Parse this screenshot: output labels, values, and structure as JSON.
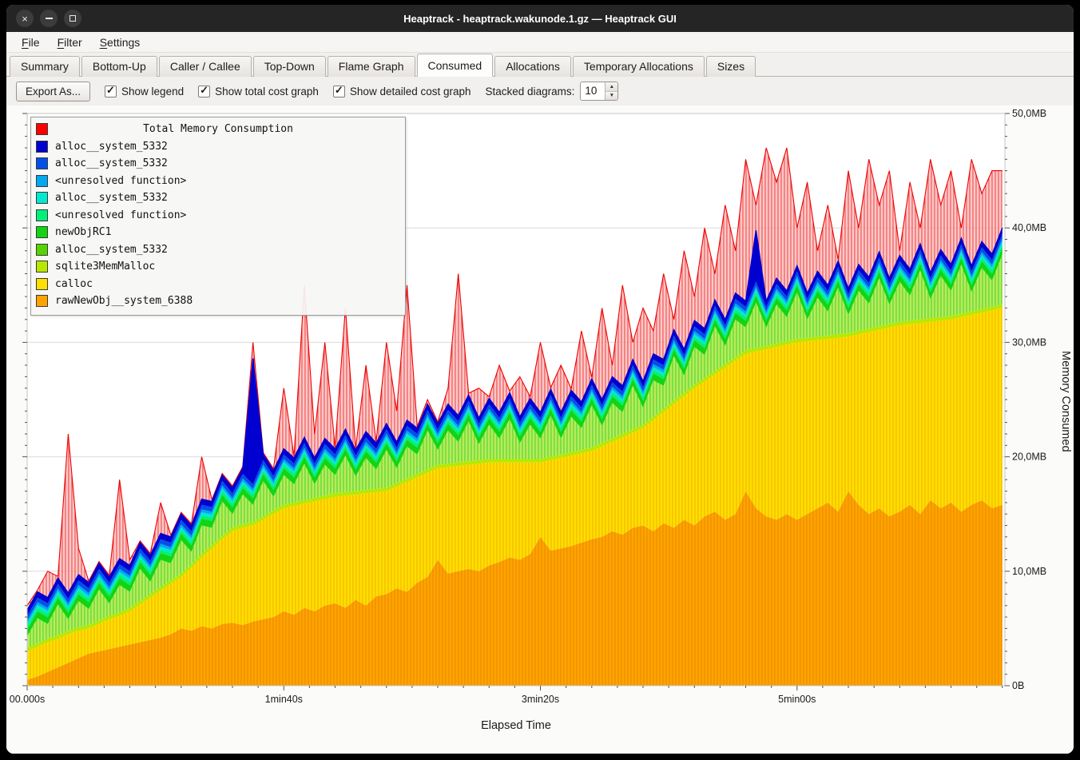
{
  "window": {
    "title": "Heaptrack - heaptrack.wakunode.1.gz — Heaptrack GUI"
  },
  "menu": {
    "items": [
      {
        "label": "File",
        "mnemonic": 0
      },
      {
        "label": "Filter",
        "mnemonic": 0
      },
      {
        "label": "Settings",
        "mnemonic": 0
      }
    ]
  },
  "tabs": {
    "active": 5,
    "items": [
      {
        "label": "Summary"
      },
      {
        "label": "Bottom-Up"
      },
      {
        "label": "Caller / Callee"
      },
      {
        "label": "Top-Down"
      },
      {
        "label": "Flame Graph"
      },
      {
        "label": "Consumed"
      },
      {
        "label": "Allocations"
      },
      {
        "label": "Temporary Allocations"
      },
      {
        "label": "Sizes"
      }
    ]
  },
  "toolbar": {
    "export_label": "Export As...",
    "checkboxes": [
      {
        "label": "Show legend",
        "checked": true
      },
      {
        "label": "Show total cost graph",
        "checked": true
      },
      {
        "label": "Show detailed cost graph",
        "checked": true
      }
    ],
    "stacked_label": "Stacked diagrams:",
    "stacked_value": "10"
  },
  "chart_data": {
    "type": "area",
    "title": "Total Memory Consumption",
    "xlabel": "Elapsed Time",
    "ylabel": "Memory Consumed",
    "xlim": [
      0,
      381
    ],
    "ylim": [
      0,
      50
    ],
    "x_step": 4,
    "x_count": 96,
    "x_minor": 10,
    "y_minor": 1,
    "x_ticks": [
      {
        "t": 0,
        "label": "00.000s"
      },
      {
        "t": 100,
        "label": "1min40s"
      },
      {
        "t": 200,
        "label": "3min20s"
      },
      {
        "t": 300,
        "label": "5min00s"
      }
    ],
    "y_ticks": [
      {
        "v": 0,
        "label": "0B"
      },
      {
        "v": 10,
        "label": "10,0MB"
      },
      {
        "v": 20,
        "label": "20,0MB"
      },
      {
        "v": 30,
        "label": "30,0MB"
      },
      {
        "v": 40,
        "label": "40,0MB"
      },
      {
        "v": 50,
        "label": "50,0MB"
      }
    ],
    "legend": [
      {
        "label": "Total Memory Consumption",
        "color": "#ff0000"
      },
      {
        "label": "alloc__system_5332",
        "color": "#0000d0"
      },
      {
        "label": "alloc__system_5332",
        "color": "#0050e8"
      },
      {
        "label": "<unresolved function>",
        "color": "#00a8f0"
      },
      {
        "label": "alloc__system_5332",
        "color": "#00e8d0"
      },
      {
        "label": "<unresolved function>",
        "color": "#00f07a"
      },
      {
        "label": "newObjRC1",
        "color": "#12d412"
      },
      {
        "label": "alloc__system_5332",
        "color": "#55d400"
      },
      {
        "label": "sqlite3MemMalloc",
        "color": "#b8e800"
      },
      {
        "label": "calloc",
        "color": "#ffdf00"
      },
      {
        "label": "rawNewObj__system_6388",
        "color": "#ffa300"
      }
    ],
    "patterns": {
      "po": {
        "base": "#ffa300",
        "line": "#e78c00"
      },
      "py": {
        "base": "#ffdf00",
        "line": "#f0b400"
      },
      "pg": {
        "base": "#b9ec57",
        "line": "#4cd338"
      },
      "pr": {
        "base": "#ffb4b4",
        "line": "#e01414"
      }
    },
    "grid_color": "#dcdcdc",
    "series": [
      {
        "name": "rawNewObj__system_6388",
        "color": "#ffa300",
        "pattern": "po",
        "values": [
          0.5,
          0.8,
          1.2,
          1.6,
          2.0,
          2.4,
          2.8,
          3.0,
          3.2,
          3.4,
          3.6,
          3.8,
          4.0,
          4.2,
          4.5,
          5.0,
          4.8,
          5.2,
          5.0,
          5.4,
          5.5,
          5.3,
          5.6,
          5.8,
          6.0,
          6.5,
          6.2,
          6.8,
          6.5,
          7.0,
          7.2,
          6.8,
          7.5,
          7.0,
          7.8,
          8.0,
          8.5,
          8.2,
          9.0,
          9.5,
          11.0,
          9.8,
          10.0,
          10.2,
          10.0,
          10.5,
          10.8,
          11.2,
          11.0,
          11.5,
          13.0,
          11.8,
          12.0,
          12.2,
          12.5,
          12.8,
          13.0,
          13.5,
          13.2,
          13.8,
          14.0,
          13.5,
          14.2,
          13.8,
          14.5,
          14.0,
          14.8,
          15.2,
          14.5,
          15.0,
          17.0,
          15.5,
          14.8,
          14.5,
          15.0,
          14.5,
          15.0,
          15.5,
          16.0,
          15.2,
          17.0,
          15.8,
          15.0,
          15.5,
          14.8,
          15.2,
          15.8,
          15.0,
          16.2,
          15.5,
          16.0,
          15.2,
          15.8,
          16.2,
          15.5,
          15.8
        ]
      },
      {
        "name": "calloc",
        "color": "#ffdf00",
        "pattern": "py",
        "values": [
          2.5,
          2.6,
          2.6,
          2.5,
          2.5,
          2.4,
          2.2,
          2.4,
          2.6,
          2.7,
          2.9,
          3.3,
          3.7,
          4.1,
          4.4,
          4.5,
          5.5,
          6.0,
          7.0,
          7.4,
          8.0,
          8.5,
          8.4,
          8.7,
          9.0,
          9.0,
          9.5,
          9.1,
          9.6,
          9.3,
          9.3,
          9.8,
          9.2,
          9.8,
          9.1,
          9.0,
          8.9,
          9.6,
          9.2,
          9.1,
          8.0,
          9.3,
          9.2,
          9.1,
          9.4,
          9.0,
          8.7,
          8.3,
          8.5,
          8.0,
          6.5,
          7.9,
          7.9,
          7.9,
          7.8,
          7.7,
          7.9,
          7.8,
          8.5,
          8.3,
          8.5,
          9.7,
          9.7,
          10.8,
          10.8,
          12.0,
          11.8,
          12.0,
          13.3,
          13.4,
          12.0,
          13.7,
          14.6,
          15.1,
          14.8,
          15.5,
          15.1,
          14.7,
          14.3,
          15.2,
          13.5,
          14.9,
          15.9,
          15.6,
          16.5,
          16.3,
          15.8,
          16.7,
          15.6,
          16.4,
          16.0,
          17.0,
          16.6,
          16.4,
          17.3,
          17.2
        ]
      },
      {
        "name": "sqlite3MemMalloc",
        "color": "#b8e800",
        "const": 0.3
      },
      {
        "name": "alloc__system_5332",
        "color": "#55d400",
        "pattern": "pg",
        "values": [
          1.0,
          2.2,
          1.3,
          2.7,
          1.0,
          2.3,
          1.4,
          2.7,
          1.1,
          2.4,
          1.4,
          2.8,
          1.1,
          2.4,
          1.5,
          2.9,
          1.1,
          2.5,
          1.5,
          3.0,
          1.2,
          2.6,
          1.5,
          3.1,
          1.2,
          2.6,
          1.6,
          3.2,
          1.2,
          2.7,
          1.6,
          3.2,
          1.3,
          2.8,
          1.7,
          3.3,
          1.3,
          2.8,
          1.7,
          3.4,
          1.3,
          2.9,
          1.8,
          3.5,
          1.4,
          3.0,
          1.8,
          3.5,
          1.4,
          3.0,
          1.8,
          3.6,
          1.4,
          3.1,
          1.9,
          3.7,
          1.5,
          3.1,
          1.9,
          3.8,
          1.5,
          3.2,
          2.0,
          3.9,
          1.5,
          3.3,
          2.0,
          3.9,
          1.6,
          3.3,
          2.0,
          4.0,
          1.6,
          3.4,
          2.1,
          4.1,
          1.6,
          3.4,
          2.1,
          4.1,
          1.6,
          3.5,
          2.2,
          4.2,
          1.7,
          3.5,
          2.2,
          4.3,
          1.7,
          3.6,
          2.2,
          4.3,
          1.7,
          3.6,
          2.3,
          4.4
        ]
      },
      {
        "name": "newObjRC1",
        "color": "#12d412",
        "const": 0.6
      },
      {
        "name": "<unresolved function>",
        "color": "#00f07a",
        "const": 0.3
      },
      {
        "name": "alloc__system_5332",
        "color": "#00e8d0",
        "const": 0.25
      },
      {
        "name": "<unresolved function>",
        "color": "#00a8f0",
        "const": 0.25
      },
      {
        "name": "alloc__system_5332",
        "color": "#0050e8",
        "const": 0.4
      },
      {
        "name": "alloc__system_5332",
        "color": "#0000d0",
        "const": 0.5,
        "overrides": {
          "22": 11.0,
          "71": 4.5
        }
      }
    ],
    "total": {
      "name": "Total Memory Consumption",
      "color": "#ee0000",
      "values": [
        7,
        8,
        10,
        8,
        22,
        12,
        9,
        10,
        9,
        18,
        11,
        12,
        10,
        16,
        12,
        14,
        11,
        20,
        13,
        15,
        13,
        18,
        30,
        20,
        16,
        26,
        18,
        35,
        22,
        30,
        20,
        33,
        19,
        28,
        20,
        30,
        24,
        35,
        22,
        25,
        21,
        26,
        36,
        24,
        26,
        22,
        28,
        24,
        27,
        23,
        30,
        25,
        28,
        24,
        31,
        26,
        33,
        28,
        35,
        30,
        33,
        31,
        36,
        32,
        38,
        34,
        40,
        36,
        42,
        38,
        46,
        42,
        47,
        44,
        47,
        40,
        44,
        38,
        42,
        36,
        45,
        40,
        46,
        42,
        45,
        38,
        44,
        40,
        46,
        42,
        45,
        40,
        46,
        43,
        45,
        45
      ]
    }
  }
}
